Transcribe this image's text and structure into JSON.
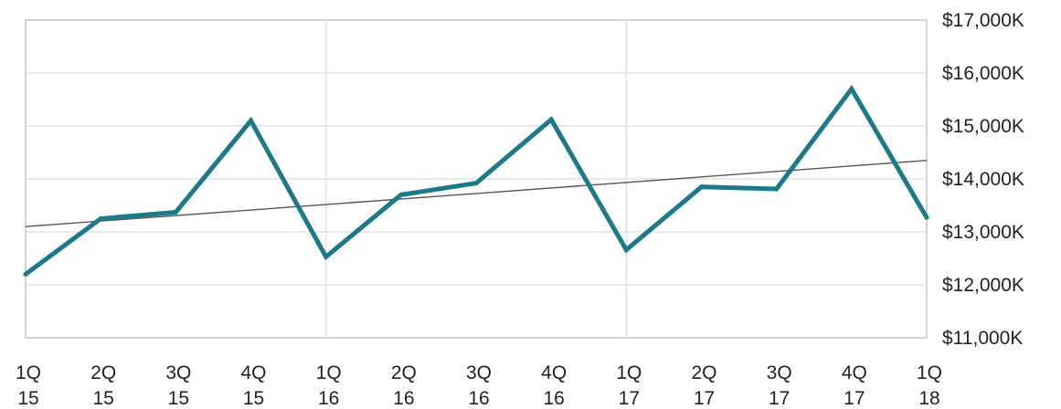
{
  "chart_data": {
    "type": "line",
    "title": "",
    "xlabel": "",
    "ylabel": "",
    "categories": [
      [
        "1Q",
        "15"
      ],
      [
        "2Q",
        "15"
      ],
      [
        "3Q",
        "15"
      ],
      [
        "4Q",
        "15"
      ],
      [
        "1Q",
        "16"
      ],
      [
        "2Q",
        "16"
      ],
      [
        "3Q",
        "16"
      ],
      [
        "4Q",
        "16"
      ],
      [
        "1Q",
        "17"
      ],
      [
        "2Q",
        "17"
      ],
      [
        "3Q",
        "17"
      ],
      [
        "4Q",
        "17"
      ],
      [
        "1Q",
        "18"
      ]
    ],
    "series": [
      {
        "values": [
          12200,
          13250,
          13370,
          15100,
          12530,
          13700,
          13920,
          15120,
          12660,
          13850,
          13810,
          15700,
          13270
        ],
        "color": "#1a7a8a"
      }
    ],
    "trendline": {
      "start": 13100,
      "end": 14350,
      "color": "#555555"
    },
    "ylim": [
      11000,
      17000
    ],
    "yticks": [
      11000,
      12000,
      13000,
      14000,
      15000,
      16000,
      17000
    ],
    "ytick_labels": [
      "$11,000K",
      "$12,000K",
      "$13,000K",
      "$14,000K",
      "$15,000K",
      "$16,000K",
      "$17,000K"
    ],
    "y_axis_side": "right",
    "grid": true,
    "legend": "none"
  }
}
